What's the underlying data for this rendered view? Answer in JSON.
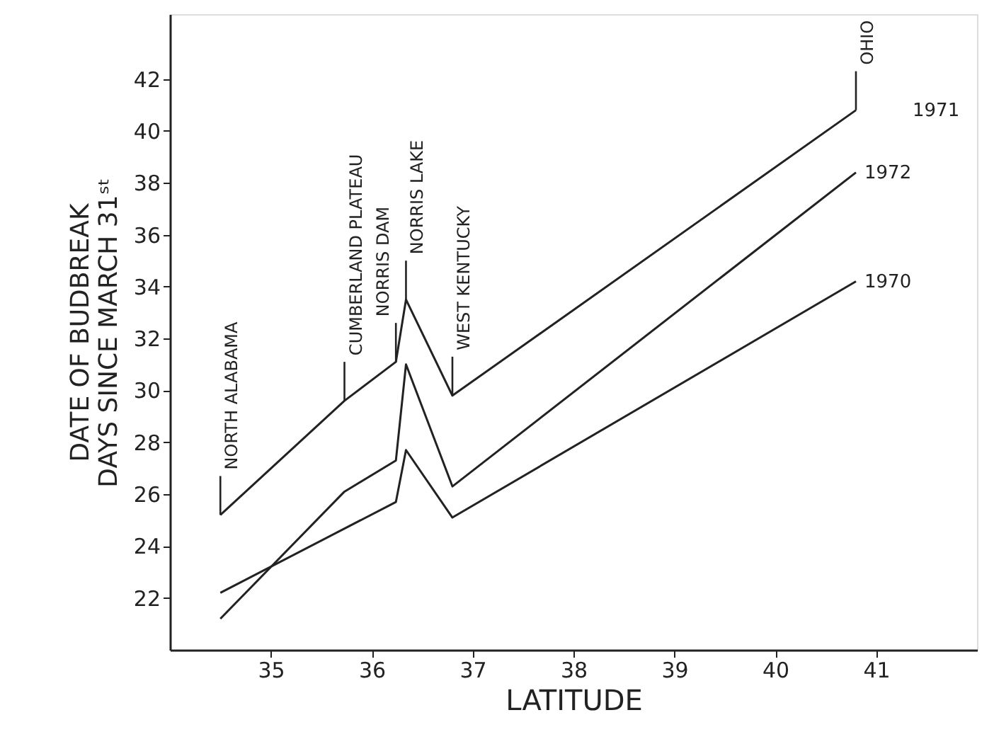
{
  "chart_data": {
    "type": "line",
    "xlabel": "LATITUDE",
    "ylabel": [
      "DATE OF BUDBREAK",
      "DAYS SINCE MARCH 31ˢᵗ"
    ],
    "xlim": [
      34,
      42
    ],
    "xticks": [
      35,
      36,
      37,
      38,
      39,
      40,
      41
    ],
    "ylim": [
      20,
      44.5
    ],
    "yticks": [
      22,
      24,
      26,
      28,
      30,
      32,
      34,
      36,
      38,
      40,
      42
    ],
    "grid": false,
    "marker": "none",
    "line_style": "solid",
    "series": [
      {
        "name": "1971",
        "color": "#222222",
        "x": [
          34.5,
          35.73,
          36.24,
          36.34,
          36.8,
          40.8
        ],
        "values": [
          25.2,
          29.6,
          31.1,
          33.5,
          29.8,
          40.8
        ]
      },
      {
        "name": "1972",
        "color": "#222222",
        "x": [
          34.5,
          35.73,
          36.24,
          36.34,
          36.8,
          40.8
        ],
        "values": [
          21.2,
          26.1,
          27.3,
          31.0,
          26.3,
          38.4
        ]
      },
      {
        "name": "1970",
        "color": "#222222",
        "x": [
          34.5,
          36.24,
          36.34,
          36.8,
          40.8
        ],
        "values": [
          22.2,
          25.7,
          27.7,
          25.1,
          34.2
        ]
      }
    ],
    "annotations": [
      {
        "text": "NORTH ALABAMA",
        "x": 34.5,
        "y": 25.2
      },
      {
        "text": "CUMBERLAND PLATEAU",
        "x": 35.73,
        "y": 29.6
      },
      {
        "text": "NORRIS DAM",
        "x": 36.24,
        "y": 31.1
      },
      {
        "text": "NORRIS LAKE",
        "x": 36.34,
        "y": 33.5
      },
      {
        "text": "WEST KENTUCKY",
        "x": 36.8,
        "y": 29.8
      },
      {
        "text": "OHIO",
        "x": 40.8,
        "y": 40.8
      }
    ]
  }
}
